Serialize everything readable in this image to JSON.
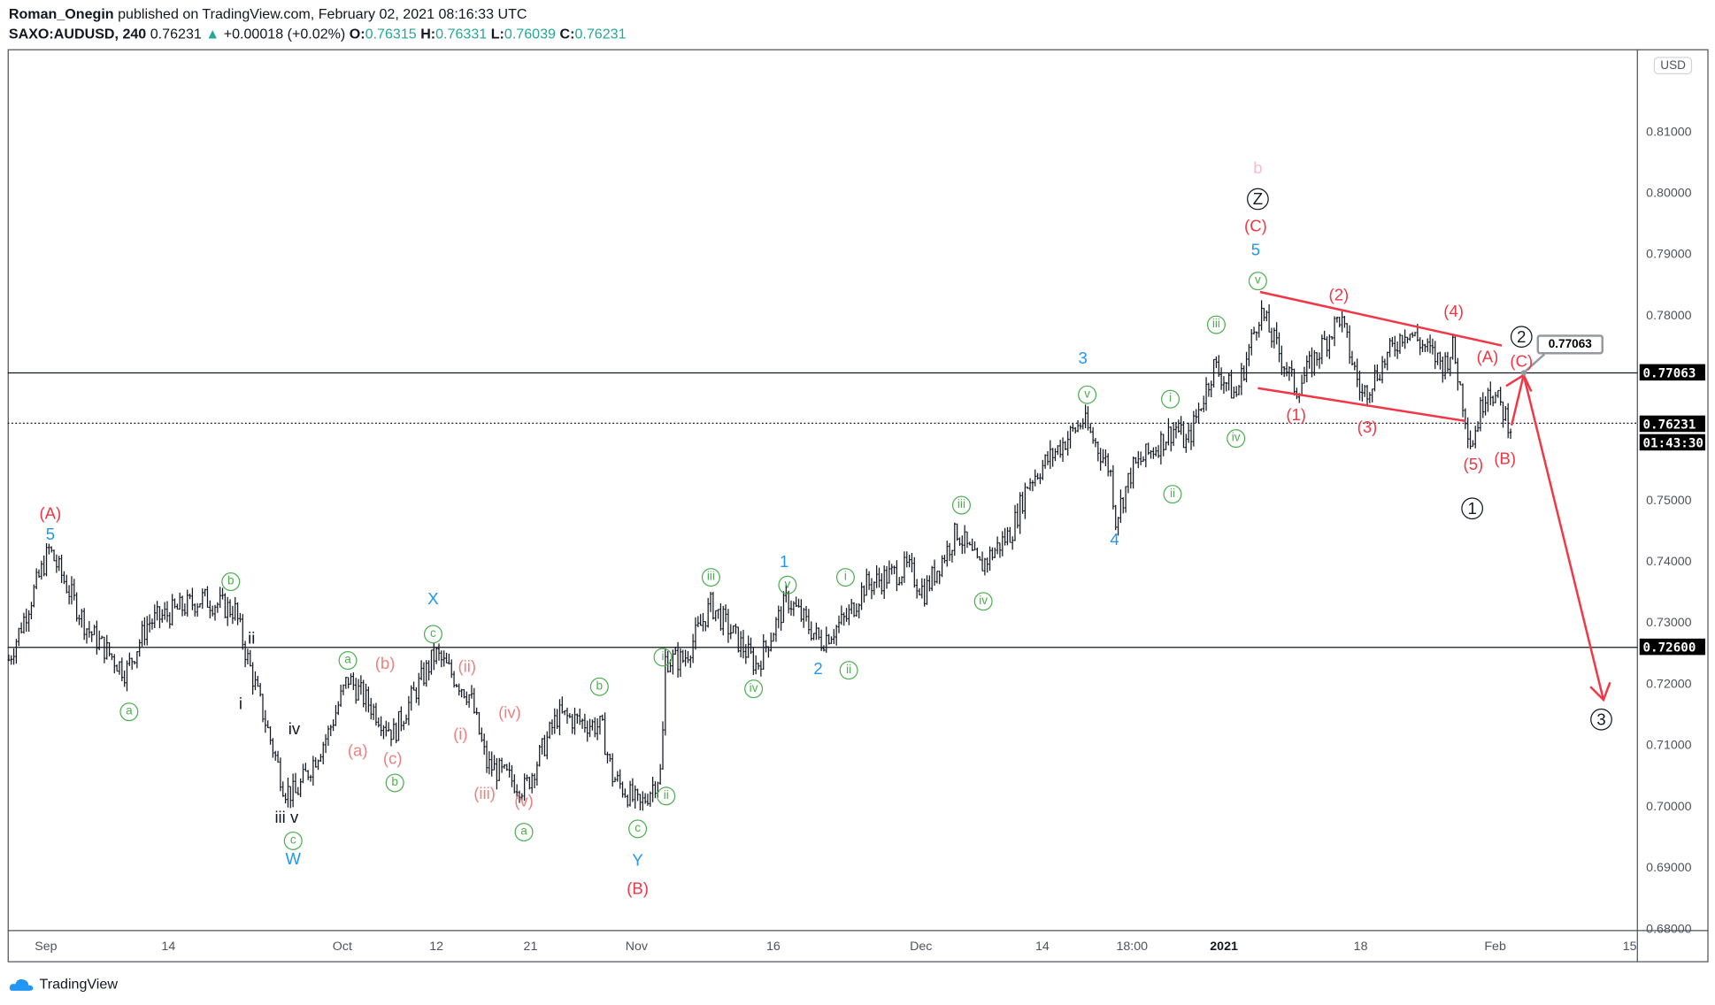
{
  "header": {
    "author": "Roman_Onegin",
    "published": "published on TradingView.com, February 02, 2021 08:16:33 UTC",
    "symbol": "SAXO:AUDUSD, 240",
    "last": "0.76231",
    "change": "+0.00018 (+0.02%)",
    "o_label": "O:",
    "o": "0.76315",
    "h_label": "H:",
    "h": "0.76331",
    "l_label": "L:",
    "l": "0.76039",
    "c_label": "C:",
    "c": "0.76231"
  },
  "colors": {
    "up": "#26a69a",
    "wave_red": "#f23645",
    "wave_blue": "#2196f3",
    "wave_green": "#4caf50"
  },
  "price_axis": {
    "currency": "USD",
    "ticks": [
      "0.81000",
      "0.80000",
      "0.79000",
      "0.78000",
      "0.75000",
      "0.74000",
      "0.73000",
      "0.72000",
      "0.71000",
      "0.70000",
      "0.69000",
      "0.68000"
    ],
    "tick_values": [
      0.81,
      0.8,
      0.79,
      0.78,
      0.75,
      0.74,
      0.73,
      0.72,
      0.71,
      0.7,
      0.69,
      0.68
    ],
    "labels": {
      "level_high": "0.77063",
      "last_price": "0.76231",
      "countdown": "01:43:30",
      "level_low": "0.72600"
    }
  },
  "time_axis": {
    "ticks": [
      "Sep",
      "14",
      "Oct",
      "12",
      "21",
      "Nov",
      "16",
      "Dec",
      "14",
      "18:00",
      "2021",
      "18",
      "Feb",
      "15"
    ]
  },
  "callout": "0.77063",
  "chart_data": {
    "type": "ohlc",
    "title": "SAXO:AUDUSD, 240",
    "ylim": [
      0.68,
      0.815
    ],
    "horizontal_levels": [
      0.77063,
      0.726
    ],
    "last_price": 0.76231,
    "path_points": [
      [
        0,
        0.724
      ],
      [
        37,
        0.742
      ],
      [
        72,
        0.729
      ],
      [
        107,
        0.722
      ],
      [
        127,
        0.73
      ],
      [
        177,
        0.734
      ],
      [
        207,
        0.732
      ],
      [
        217,
        0.725
      ],
      [
        252,
        0.703
      ],
      [
        262,
        0.702
      ],
      [
        292,
        0.712
      ],
      [
        310,
        0.721
      ],
      [
        352,
        0.712
      ],
      [
        372,
        0.719
      ],
      [
        390,
        0.725
      ],
      [
        422,
        0.718
      ],
      [
        437,
        0.707
      ],
      [
        472,
        0.703
      ],
      [
        502,
        0.715
      ],
      [
        542,
        0.713
      ],
      [
        552,
        0.705
      ],
      [
        577,
        0.7
      ],
      [
        597,
        0.706
      ],
      [
        600,
        0.724
      ],
      [
        617,
        0.724
      ],
      [
        642,
        0.733
      ],
      [
        684,
        0.723
      ],
      [
        712,
        0.734
      ],
      [
        742,
        0.727
      ],
      [
        767,
        0.731
      ],
      [
        782,
        0.736
      ],
      [
        822,
        0.739
      ],
      [
        837,
        0.735
      ],
      [
        867,
        0.745
      ],
      [
        887,
        0.739
      ],
      [
        917,
        0.745
      ],
      [
        932,
        0.753
      ],
      [
        982,
        0.763
      ],
      [
        1007,
        0.755
      ],
      [
        1012,
        0.747
      ],
      [
        1027,
        0.755
      ],
      [
        1067,
        0.762
      ],
      [
        1077,
        0.759
      ],
      [
        1102,
        0.772
      ],
      [
        1122,
        0.767
      ],
      [
        1144,
        0.781
      ],
      [
        1177,
        0.768
      ],
      [
        1217,
        0.78
      ],
      [
        1237,
        0.767
      ],
      [
        1277,
        0.778
      ],
      [
        1312,
        0.772
      ],
      [
        1320,
        0.775
      ],
      [
        1337,
        0.759
      ],
      [
        1352,
        0.769
      ],
      [
        1374,
        0.762
      ]
    ]
  },
  "wave_labels": [
    "(A)",
    "5",
    "b",
    "ii",
    "i",
    "a",
    "iv",
    "iii v",
    "c",
    "W",
    "X",
    "c",
    "a",
    "(b)",
    "(ii)",
    "(iv)",
    "(i)",
    "(a)",
    "(c)",
    "b",
    "(iii)",
    "(v)",
    "a",
    "b",
    "c",
    "Y",
    "(B)",
    "i",
    "ii",
    "iii",
    "1",
    "v",
    "i",
    "iv",
    "2",
    "ii",
    "iii",
    "iv",
    "3",
    "v",
    "4",
    "i",
    "ii",
    "iv",
    "iii",
    "v",
    "5",
    "(C)",
    "Z",
    "b",
    "(2)",
    "(4)",
    "(1)",
    "(3)",
    "(5)",
    "(B)",
    "(A)",
    "(C)",
    "2",
    "1",
    "3"
  ],
  "footer": {
    "brand": "TradingView"
  }
}
